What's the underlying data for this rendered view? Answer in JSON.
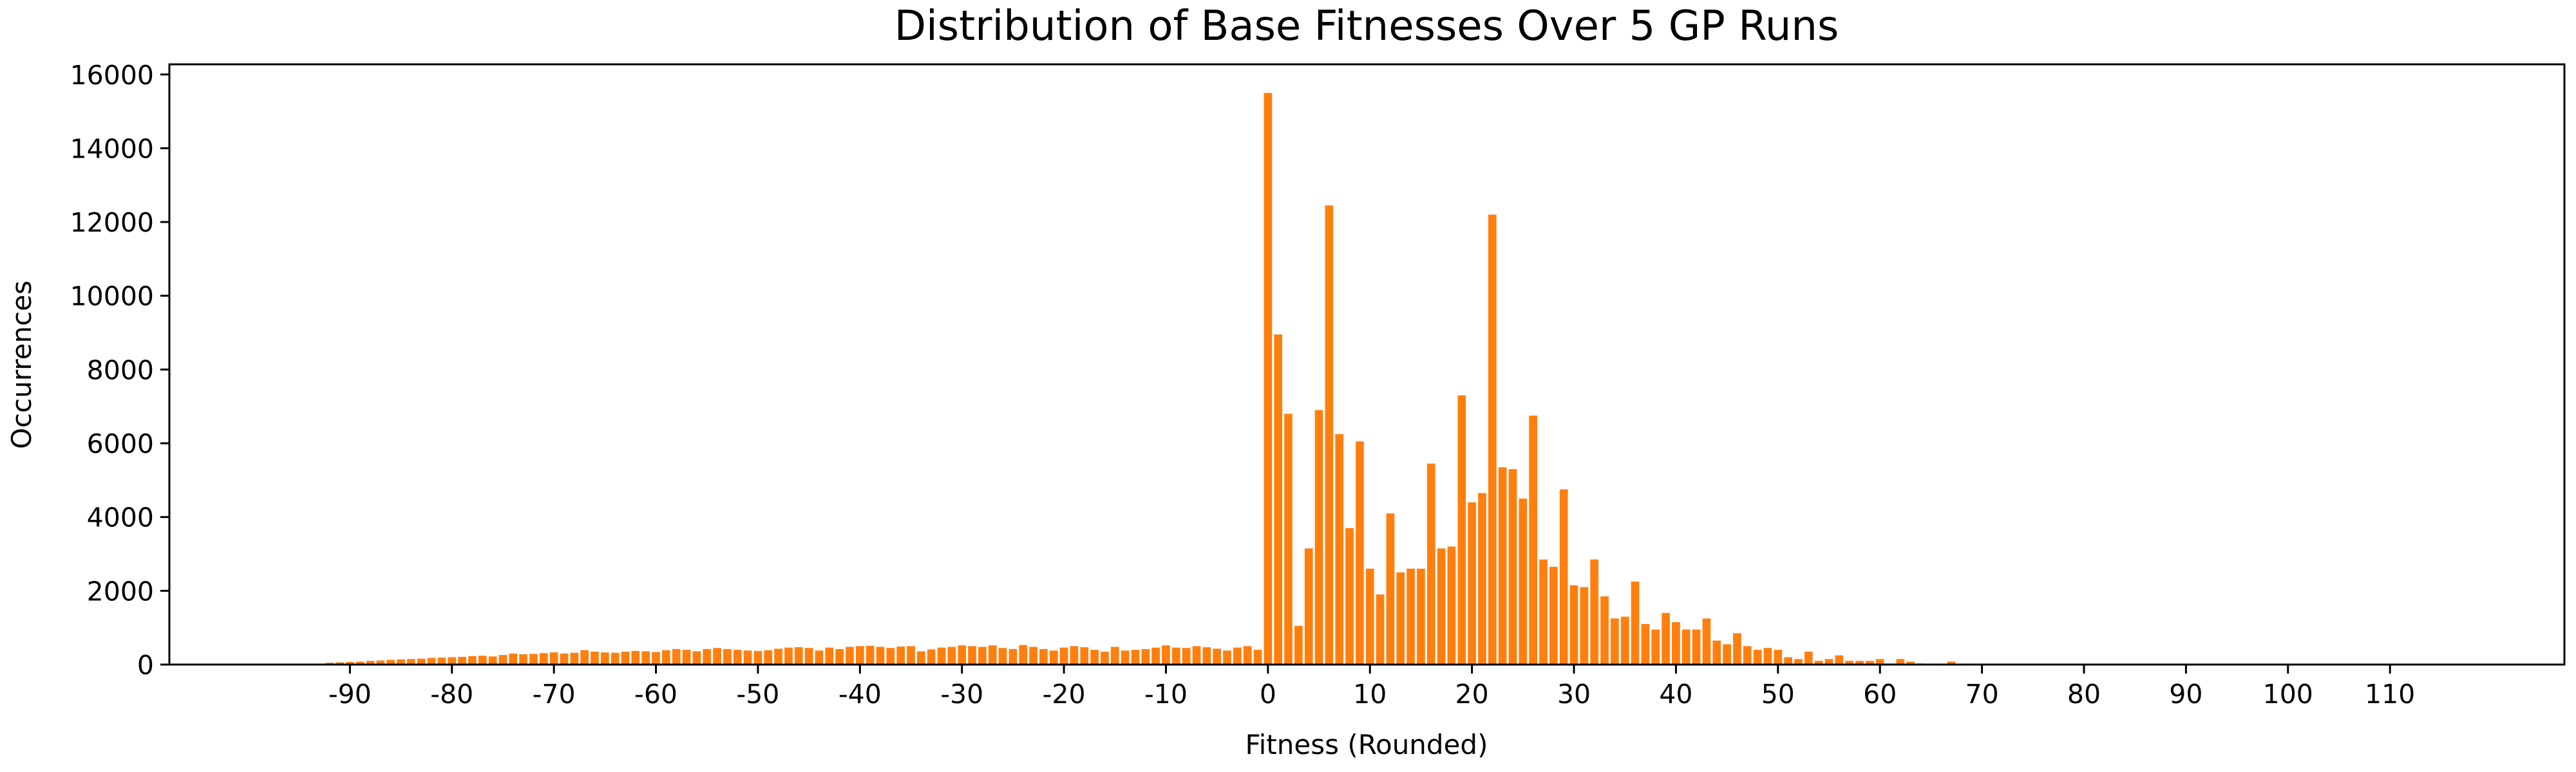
{
  "chart_data": {
    "type": "bar",
    "title": "Distribution of Base Fitnesses Over 5 GP Runs",
    "xlabel": "Fitness (Rounded)",
    "ylabel": "Occurrences",
    "color": "#ff7f0e",
    "x": [
      -92,
      -91,
      -90,
      -89,
      -88,
      -87,
      -86,
      -85,
      -84,
      -83,
      -82,
      -81,
      -80,
      -79,
      -78,
      -77,
      -76,
      -75,
      -74,
      -73,
      -72,
      -71,
      -70,
      -69,
      -68,
      -67,
      -66,
      -65,
      -64,
      -63,
      -62,
      -61,
      -60,
      -59,
      -58,
      -57,
      -56,
      -55,
      -54,
      -53,
      -52,
      -51,
      -50,
      -49,
      -48,
      -47,
      -46,
      -45,
      -44,
      -43,
      -42,
      -41,
      -40,
      -39,
      -38,
      -37,
      -36,
      -35,
      -34,
      -33,
      -32,
      -31,
      -30,
      -29,
      -28,
      -27,
      -26,
      -25,
      -24,
      -23,
      -22,
      -21,
      -20,
      -19,
      -18,
      -17,
      -16,
      -15,
      -14,
      -13,
      -12,
      -11,
      -10,
      -9,
      -8,
      -7,
      -6,
      -5,
      -4,
      -3,
      -2,
      -1,
      0,
      1,
      2,
      3,
      4,
      5,
      6,
      7,
      8,
      9,
      10,
      11,
      12,
      13,
      14,
      15,
      16,
      17,
      18,
      19,
      20,
      21,
      22,
      23,
      24,
      25,
      26,
      27,
      28,
      29,
      30,
      31,
      32,
      33,
      34,
      35,
      36,
      37,
      38,
      39,
      40,
      41,
      42,
      43,
      44,
      45,
      46,
      47,
      48,
      49,
      50,
      51,
      52,
      53,
      54,
      55,
      56,
      57,
      58,
      59,
      60,
      61,
      62,
      63,
      64,
      65,
      66,
      67,
      68,
      69,
      70,
      71,
      72,
      73,
      74
    ],
    "values": [
      50,
      60,
      70,
      80,
      100,
      110,
      130,
      140,
      150,
      160,
      180,
      190,
      200,
      210,
      230,
      240,
      220,
      260,
      300,
      280,
      290,
      310,
      330,
      300,
      320,
      390,
      350,
      330,
      320,
      350,
      370,
      360,
      340,
      390,
      420,
      400,
      360,
      420,
      450,
      420,
      400,
      380,
      370,
      390,
      430,
      460,
      470,
      450,
      380,
      460,
      420,
      480,
      500,
      510,
      480,
      450,
      490,
      500,
      360,
      410,
      460,
      480,
      520,
      500,
      480,
      520,
      450,
      420,
      530,
      480,
      420,
      380,
      460,
      500,
      470,
      400,
      350,
      480,
      380,
      400,
      420,
      460,
      520,
      460,
      450,
      500,
      470,
      430,
      380,
      460,
      500,
      400,
      15500,
      8950,
      6800,
      1050,
      3150,
      6900,
      12450,
      6250,
      3700,
      6050,
      2600,
      1900,
      4100,
      2500,
      2600,
      2600,
      5450,
      3150,
      3200,
      7300,
      4400,
      4650,
      12200,
      5350,
      5300,
      4500,
      6750,
      2850,
      2650,
      4750,
      2150,
      2100,
      2850,
      1850,
      1250,
      1300,
      2250,
      1100,
      950,
      1400,
      1150,
      950,
      950,
      1250,
      650,
      550,
      850,
      500,
      400,
      450,
      400,
      200,
      150,
      350,
      100,
      150,
      250,
      100,
      100,
      100,
      150,
      30,
      150,
      80,
      30,
      20,
      20,
      80,
      10,
      10,
      10,
      5,
      5,
      5,
      5
    ],
    "xlim": [
      -107.7,
      127.1
    ],
    "xticks": [
      -90,
      -80,
      -70,
      -60,
      -50,
      -40,
      -30,
      -20,
      -10,
      0,
      10,
      20,
      30,
      40,
      50,
      60,
      70,
      80,
      90,
      100,
      110
    ],
    "ylim": [
      0,
      16275
    ],
    "yticks": [
      0,
      2000,
      4000,
      6000,
      8000,
      10000,
      12000,
      14000,
      16000
    ]
  }
}
